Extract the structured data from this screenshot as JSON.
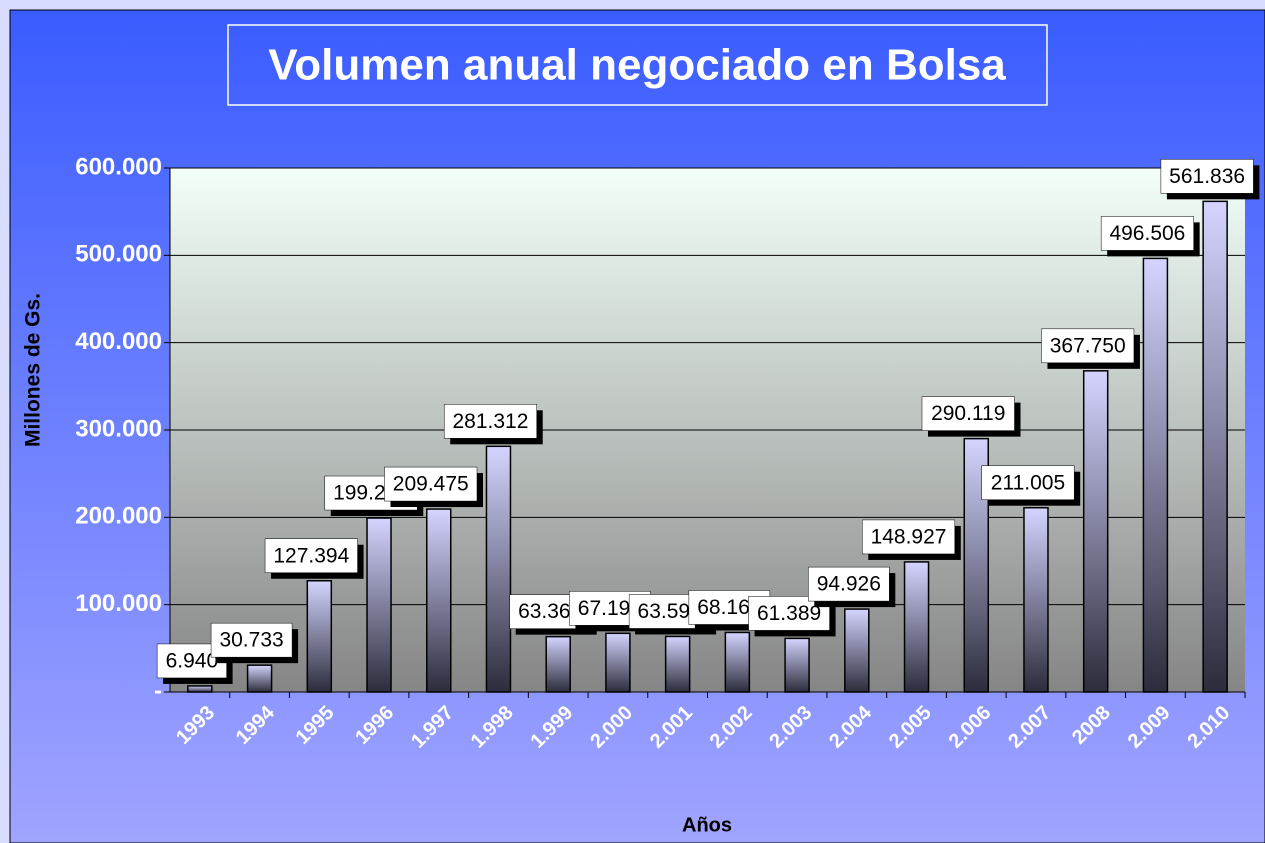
{
  "chart_data": {
    "type": "bar",
    "title": "Volumen anual negociado en Bolsa",
    "y_label": "Millones de Gs.",
    "x_label": "Años",
    "categories": [
      "1993",
      "1994",
      "1995",
      "1996",
      "1.997",
      "1.998",
      "1.999",
      "2.000",
      "2.001",
      "2.002",
      "2.003",
      "2.004",
      "2.005",
      "2.006",
      "2.007",
      "2008",
      "2.009",
      "2.010"
    ],
    "values": [
      6940,
      30733,
      127394,
      199203,
      209475,
      281312,
      63366,
      67194,
      63599,
      68169,
      61389,
      94926,
      148927,
      290119,
      211005,
      367750,
      496506,
      561836
    ],
    "value_labels": [
      "6.940",
      "30.733",
      "127.394",
      "199.203",
      "209.475",
      "281.312",
      "63.366",
      "67.194",
      "63.599",
      "68.169",
      "61.389",
      "94.926",
      "148.927",
      "290.119",
      "211.005",
      "367.750",
      "496.506",
      "561.836"
    ],
    "ylim": [
      0,
      600000
    ],
    "yticks": [
      {
        "value": 0,
        "label": "-"
      },
      {
        "value": 100000,
        "label": "100.000"
      },
      {
        "value": 200000,
        "label": "200.000"
      },
      {
        "value": 300000,
        "label": "300.000"
      },
      {
        "value": 400000,
        "label": "400.000"
      },
      {
        "value": 500000,
        "label": "500.000"
      },
      {
        "value": 600000,
        "label": "600.000"
      }
    ],
    "grid": true
  }
}
